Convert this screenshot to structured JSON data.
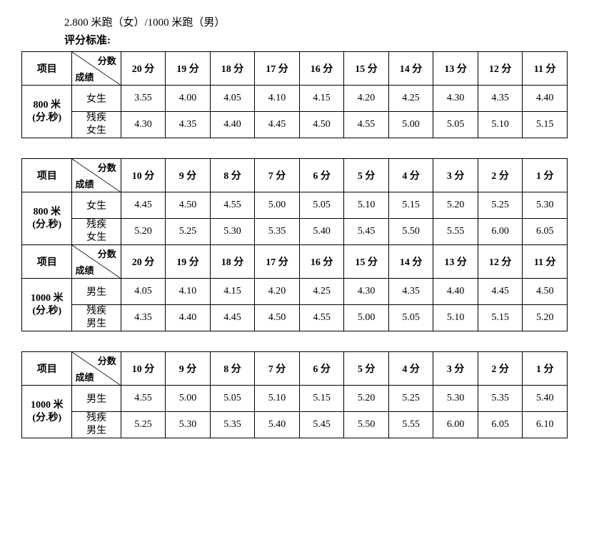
{
  "heading": "2.800 米跑（女）/1000 米跑（男）",
  "subheading": "评分标准:",
  "labels": {
    "project": "项目",
    "score": "分数",
    "result": "成绩",
    "unit_suffix": "分",
    "female": "女生",
    "female_disabled": "残疾<br>女生",
    "male": "男生",
    "male_disabled": "残疾<br>男生",
    "dist_800": "800 米<br>(分.秒)",
    "dist_1000": "1000 米<br>(分.秒)"
  },
  "tables": [
    {
      "groups": [
        {
          "scores": [
            20,
            19,
            18,
            17,
            16,
            15,
            14,
            13,
            12,
            11
          ],
          "distance_key": "dist_800",
          "rows": [
            {
              "cat_key": "female",
              "values": [
                "3.55",
                "4.00",
                "4.05",
                "4.10",
                "4.15",
                "4.20",
                "4.25",
                "4.30",
                "4.35",
                "4.40"
              ]
            },
            {
              "cat_key": "female_disabled",
              "values": [
                "4.30",
                "4.35",
                "4.40",
                "4.45",
                "4.50",
                "4.55",
                "5.00",
                "5.05",
                "5.10",
                "5.15"
              ]
            }
          ]
        }
      ]
    },
    {
      "groups": [
        {
          "scores": [
            10,
            9,
            8,
            7,
            6,
            5,
            4,
            3,
            2,
            1
          ],
          "distance_key": "dist_800",
          "rows": [
            {
              "cat_key": "female",
              "values": [
                "4.45",
                "4.50",
                "4.55",
                "5.00",
                "5.05",
                "5.10",
                "5.15",
                "5.20",
                "5.25",
                "5.30"
              ]
            },
            {
              "cat_key": "female_disabled",
              "values": [
                "5.20",
                "5.25",
                "5.30",
                "5.35",
                "5.40",
                "5.45",
                "5.50",
                "5.55",
                "6.00",
                "6.05"
              ]
            }
          ]
        },
        {
          "scores": [
            20,
            19,
            18,
            17,
            16,
            15,
            14,
            13,
            12,
            11
          ],
          "distance_key": "dist_1000",
          "rows": [
            {
              "cat_key": "male",
              "values": [
                "4.05",
                "4.10",
                "4.15",
                "4.20",
                "4.25",
                "4.30",
                "4.35",
                "4.40",
                "4.45",
                "4.50"
              ]
            },
            {
              "cat_key": "male_disabled",
              "values": [
                "4.35",
                "4.40",
                "4.45",
                "4.50",
                "4.55",
                "5.00",
                "5.05",
                "5.10",
                "5.15",
                "5.20"
              ]
            }
          ]
        }
      ]
    },
    {
      "groups": [
        {
          "scores": [
            10,
            9,
            8,
            7,
            6,
            5,
            4,
            3,
            2,
            1
          ],
          "distance_key": "dist_1000",
          "rows": [
            {
              "cat_key": "male",
              "values": [
                "4.55",
                "5.00",
                "5.05",
                "5.10",
                "5.15",
                "5.20",
                "5.25",
                "5.30",
                "5.35",
                "5.40"
              ]
            },
            {
              "cat_key": "male_disabled",
              "values": [
                "5.25",
                "5.30",
                "5.35",
                "5.40",
                "5.45",
                "5.50",
                "5.55",
                "6.00",
                "6.05",
                "6.10"
              ]
            }
          ]
        }
      ]
    }
  ]
}
